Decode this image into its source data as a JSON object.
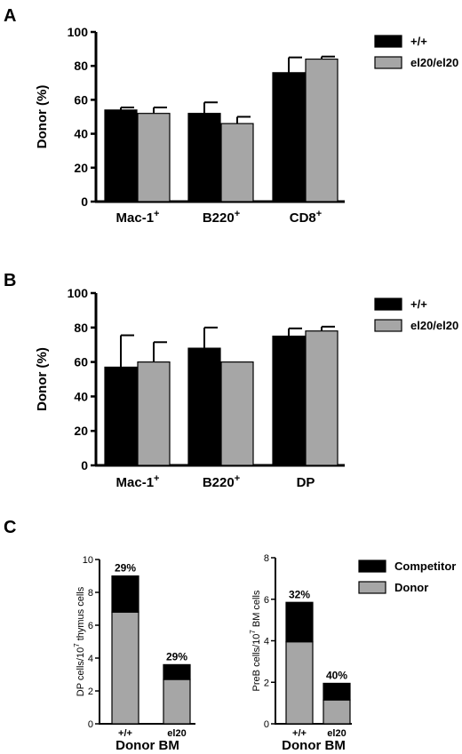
{
  "colors": {
    "wt": "#000000",
    "el20": "#a6a6a6",
    "competitor": "#000000",
    "donor": "#a6a6a6"
  },
  "chart_data": [
    {
      "panel": "A",
      "type": "bar",
      "ylabel": "Donor (%)",
      "ylim": [
        0,
        100
      ],
      "yticks": [
        "0",
        "20",
        "40",
        "60",
        "80",
        "100"
      ],
      "categories": [
        {
          "base": "Mac-1",
          "sup": "+"
        },
        {
          "base": "B220",
          "sup": "+"
        },
        {
          "base": "CD8",
          "sup": "+"
        }
      ],
      "series": [
        {
          "name": "+/+",
          "color_key": "wt",
          "values": [
            54,
            52,
            76
          ],
          "errors": [
            1.5,
            6.5,
            9
          ]
        },
        {
          "name": "el20/el20",
          "color_key": "el20",
          "values": [
            52,
            46,
            84
          ],
          "errors": [
            3.5,
            4,
            1.5
          ]
        }
      ],
      "legend": "top-right"
    },
    {
      "panel": "B",
      "type": "bar",
      "ylabel": "Donor (%)",
      "ylim": [
        0,
        100
      ],
      "yticks": [
        "0",
        "20",
        "40",
        "60",
        "80",
        "100"
      ],
      "categories": [
        {
          "base": "Mac-1",
          "sup": "+"
        },
        {
          "base": "B220",
          "sup": "+"
        },
        {
          "base": "DP",
          "sup": ""
        }
      ],
      "series": [
        {
          "name": "+/+",
          "color_key": "wt",
          "values": [
            57,
            68,
            75
          ],
          "errors": [
            18.5,
            12,
            4.5
          ]
        },
        {
          "name": "el20/el20",
          "color_key": "el20",
          "values": [
            60,
            60,
            78
          ],
          "errors": [
            11.5,
            0,
            2.5
          ]
        }
      ],
      "legend": "top-right"
    },
    {
      "panel": "C",
      "type": "bar",
      "stacked": true,
      "ylabel": {
        "base": "DP cells/10",
        "sup": "7",
        "tail": " thymus cells"
      },
      "xlabel": "Donor BM",
      "ylim": [
        0,
        10
      ],
      "yticks": [
        "0",
        "2",
        "4",
        "6",
        "8",
        "10"
      ],
      "categories": [
        "+/+",
        "el20"
      ],
      "series": [
        {
          "name": "Donor",
          "color_key": "donor",
          "values": [
            6.8,
            2.7
          ]
        },
        {
          "name": "Competitor",
          "color_key": "competitor",
          "values": [
            2.2,
            0.9
          ]
        }
      ],
      "annotations": [
        "29%",
        "29%"
      ]
    },
    {
      "panel": "",
      "type": "bar",
      "stacked": true,
      "ylabel": {
        "base": "PreB cells/10",
        "sup": "7",
        "tail": " BM cells"
      },
      "xlabel": "Donor BM",
      "ylim": [
        0,
        8
      ],
      "yticks": [
        "0",
        "2",
        "4",
        "6",
        "8"
      ],
      "categories": [
        "+/+",
        "el20"
      ],
      "series": [
        {
          "name": "Donor",
          "color_key": "donor",
          "values": [
            3.95,
            1.15
          ]
        },
        {
          "name": "Competitor",
          "color_key": "competitor",
          "values": [
            1.9,
            0.8
          ]
        }
      ],
      "annotations": [
        "32%",
        "40%"
      ],
      "legend": "top-right"
    }
  ]
}
